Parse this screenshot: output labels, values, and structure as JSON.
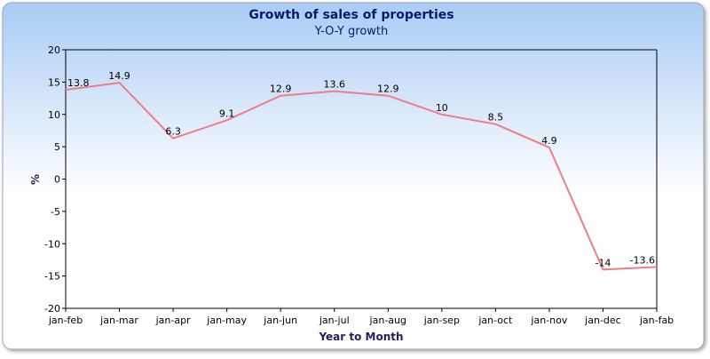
{
  "chart_data": {
    "type": "line",
    "title": "Growth of sales of properties",
    "subtitle": "Y-O-Y growth",
    "xlabel": "Year to Month",
    "ylabel": "%",
    "categories": [
      "jan-feb",
      "jan-mar",
      "jan-apr",
      "jan-may",
      "jan-jun",
      "jan-jul",
      "jan-aug",
      "jan-sep",
      "jan-oct",
      "jan-nov",
      "jan-dec",
      "jan-fab"
    ],
    "series": [
      {
        "values": [
          13.8,
          14.9,
          6.3,
          9.1,
          12.9,
          13.6,
          12.9,
          10,
          8.5,
          4.9,
          -14,
          -13.6
        ],
        "color": "#f07c84"
      }
    ],
    "ylim": [
      -20,
      20
    ],
    "yticks": [
      20,
      15,
      10,
      5,
      0,
      -5,
      -10,
      -15,
      -20
    ],
    "data_labels": [
      "13.8",
      "14.9",
      "6.3",
      "9.1",
      "12.9",
      "13.6",
      "12.9",
      "10",
      "8.5",
      "4.9",
      "-14",
      "-13.6"
    ],
    "grid": false,
    "legend": "none",
    "colors": {
      "title": "#0a1a66",
      "axis_label": "#2a1a66",
      "background_top": "#a9ccf5",
      "background_bottom": "#ffffff"
    }
  }
}
